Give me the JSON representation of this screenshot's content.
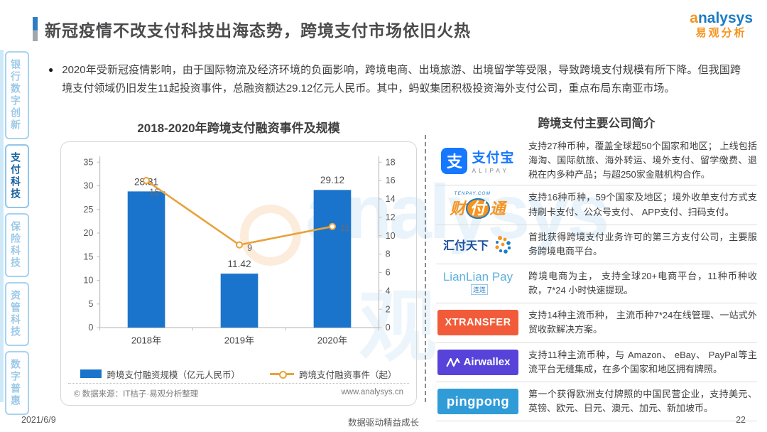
{
  "page": {
    "title": "新冠疫情不改支付科技出海态势，跨境支付市场依旧火热",
    "logo": {
      "brand_first": "a",
      "brand_rest": "nalysys",
      "brand_cn": "易观分析"
    },
    "bullet_symbol": "●",
    "bullet": "2020年受新冠疫情影响，由于国际物流及经济环境的负面影响，跨境电商、出境旅游、出境留学等受限，导致跨境支付规模有所下降。但我国跨境支付领域仍旧发生11起投资事件，总融资额达29.12亿元人民币。其中，蚂蚁集团积极投资海外支付公司，重点布局东南亚市场。",
    "watermark": "analysys",
    "watermark_cjk": "观",
    "footer": {
      "date": "2021/6/9",
      "slogan": "数据驱动精益成长",
      "page_number": "22"
    }
  },
  "sidebar": {
    "tabs": [
      {
        "label": "银行数字创新",
        "active": false
      },
      {
        "label": "支付科技",
        "active": true
      },
      {
        "label": "保险科技",
        "active": false
      },
      {
        "label": "资管科技",
        "active": false
      },
      {
        "label": "数字普惠",
        "active": false
      }
    ]
  },
  "chart": {
    "title": "2018-2020年跨境支付融资事件及规模",
    "legend": [
      {
        "label": "跨境支付融资规模（亿元人民币）",
        "type": "bar",
        "color": "#1b74cb"
      },
      {
        "label": "跨境支付融资事件（起）",
        "type": "line",
        "color": "#e9a23b"
      }
    ],
    "source": "© 数据来源：IT桔子·易观分析整理",
    "site": "www.analysys.cn"
  },
  "chart_data": {
    "type": "bar",
    "title": "2018-2020年跨境支付融资事件及规模",
    "categories": [
      "2018年",
      "2019年",
      "2020年"
    ],
    "series": [
      {
        "name": "跨境支付融资规模（亿元人民币）",
        "type": "bar",
        "axis": "left",
        "values": [
          28.81,
          11.42,
          29.12
        ],
        "color": "#1b74cb"
      },
      {
        "name": "跨境支付融资事件（起）",
        "type": "line",
        "axis": "right",
        "values": [
          16,
          9,
          11
        ],
        "color": "#e9a23b"
      }
    ],
    "left_axis": {
      "min": 0,
      "max": 35,
      "step": 5
    },
    "right_axis": {
      "min": 0,
      "max": 18,
      "step": 2
    },
    "grid": false,
    "legend_position": "bottom"
  },
  "companies": {
    "header": "跨境支付主要公司简介",
    "logos": {
      "alipay": {
        "glyph": "支",
        "name_cn": "支付宝",
        "name_en": "ALIPAY"
      },
      "tenpay": {
        "site": "TENPAY.COM",
        "char1": "财",
        "char2": "付",
        "char3": "通"
      },
      "huifu": {
        "name": "汇付天下"
      },
      "lianlian": {
        "name": "LianLian Pay",
        "badge": "连连"
      },
      "xtransfer": {
        "name": "XTRANSFER"
      },
      "airwallex": {
        "name": "Airwallex"
      },
      "pingpong": {
        "name": "pingpong"
      }
    },
    "rows": [
      {
        "company": "支付宝",
        "desc": "支持27种币种，覆盖全球超50个国家和地区； 上线包括海淘、国际航旅、海外转运、境外支付、留学缴费、退税在内多种产品；与超250家金融机构合作。"
      },
      {
        "company": "财付通",
        "desc": "支持16种币种，59个国家及地区；境外收单支付方式支持刷卡支付、公众号支付、 APP支付、扫码支付。"
      },
      {
        "company": "汇付天下",
        "desc": "首批获得跨境支付业务许可的第三方支付公司，主要服务跨境电商平台。"
      },
      {
        "company": "LianLian Pay",
        "desc": "跨境电商为主， 支持全球20+电商平台，11种币种收款，7*24 小时快速提现。"
      },
      {
        "company": "XTRANSFER",
        "desc": "支持14种主流币种， 主流币种7*24在线管理、一站式外贸收款解决方案。"
      },
      {
        "company": "Airwallex",
        "desc": "支持11种主流币种，与 Amazon、 eBay、 PayPal等主流平台无缝集成，在多个国家和地区拥有牌照。"
      },
      {
        "company": "pingpong",
        "desc": "第一个获得欧洲支付牌照的中国民营企业，支持美元、英镑、欧元、日元、澳元、加元、新加坡币。"
      }
    ]
  }
}
